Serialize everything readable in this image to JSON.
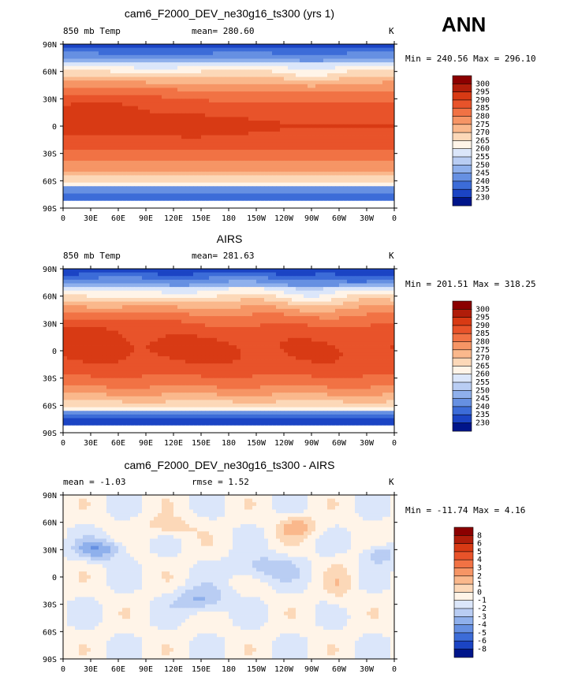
{
  "season": "ANN",
  "chart_data": [
    {
      "type": "heatmap",
      "title": "cam6_F2000_DEV_ne30g16_ts300 (yrs 1)",
      "left_label": "850 mb Temp",
      "center_label": "mean= 280.60",
      "right_label": "K",
      "minmax": "Min = 240.56 Max = 296.10",
      "x_ticks": [
        "0",
        "30E",
        "60E",
        "90E",
        "120E",
        "150E",
        "180",
        "150W",
        "120W",
        "90W",
        "60W",
        "30W",
        "0"
      ],
      "y_ticks": [
        "90N",
        "60N",
        "30N",
        "0",
        "30S",
        "60S",
        "90S"
      ],
      "colorbar": [
        "300",
        "295",
        "290",
        "285",
        "280",
        "275",
        "270",
        "265",
        "260",
        "255",
        "250",
        "245",
        "240",
        "235",
        "230"
      ],
      "colors": [
        "#8b0000",
        "#b01d0a",
        "#d83a14",
        "#e8532a",
        "#f17244",
        "#f69565",
        "#fab88c",
        "#fcd8b8",
        "#fff4e8",
        "#dbe6fa",
        "#b9cdf3",
        "#8fb0ec",
        "#6690e2",
        "#3c6cd8",
        "#1b44c4",
        "#00158a"
      ],
      "field": "model"
    },
    {
      "type": "heatmap",
      "title": "AIRS",
      "left_label": "850 mb Temp",
      "center_label": "mean= 281.63",
      "right_label": "K",
      "minmax": "Min = 201.51 Max = 318.25",
      "x_ticks": [
        "0",
        "30E",
        "60E",
        "90E",
        "120E",
        "150E",
        "180",
        "150W",
        "120W",
        "90W",
        "60W",
        "30W",
        "0"
      ],
      "y_ticks": [
        "90N",
        "60N",
        "30N",
        "0",
        "30S",
        "60S",
        "90S"
      ],
      "colorbar": [
        "300",
        "295",
        "290",
        "285",
        "280",
        "275",
        "270",
        "265",
        "260",
        "255",
        "250",
        "245",
        "240",
        "235",
        "230"
      ],
      "colors": [
        "#8b0000",
        "#b01d0a",
        "#d83a14",
        "#e8532a",
        "#f17244",
        "#f69565",
        "#fab88c",
        "#fcd8b8",
        "#fff4e8",
        "#dbe6fa",
        "#b9cdf3",
        "#8fb0ec",
        "#6690e2",
        "#3c6cd8",
        "#1b44c4",
        "#00158a"
      ],
      "field": "obs"
    },
    {
      "type": "heatmap",
      "title": "cam6_F2000_DEV_ne30g16_ts300 - AIRS",
      "left_label": "mean =   -1.03",
      "center_label": "rmse =    1.52",
      "right_label": "K",
      "minmax": "Min = -11.74 Max =    4.16",
      "x_ticks": [
        "0",
        "30E",
        "60E",
        "90E",
        "120E",
        "150E",
        "180",
        "150W",
        "120W",
        "90W",
        "60W",
        "30W",
        "0"
      ],
      "y_ticks": [
        "90N",
        "60N",
        "30N",
        "0",
        "30S",
        "60S",
        "90S"
      ],
      "colorbar": [
        "8",
        "6",
        "5",
        "4",
        "3",
        "2",
        "1",
        "0",
        "-1",
        "-2",
        "-3",
        "-4",
        "-5",
        "-6",
        "-8"
      ],
      "colors": [
        "#8b0000",
        "#b01d0a",
        "#d83a14",
        "#e8532a",
        "#f17244",
        "#f69565",
        "#fab88c",
        "#fcd8b8",
        "#fff4e8",
        "#dbe6fa",
        "#b9cdf3",
        "#8fb0ec",
        "#6690e2",
        "#3c6cd8",
        "#1b44c4",
        "#00158a"
      ],
      "field": "diff"
    }
  ]
}
